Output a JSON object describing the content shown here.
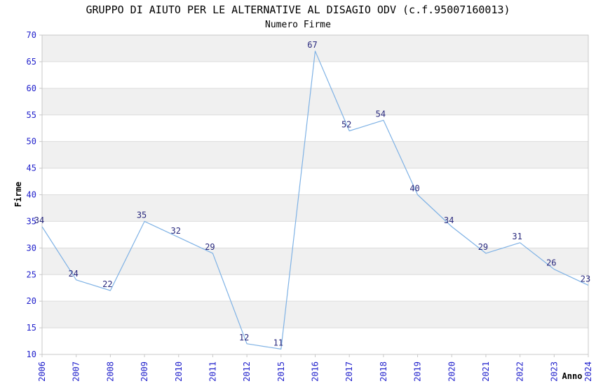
{
  "chart_data": {
    "type": "line",
    "title": "GRUPPO DI AIUTO PER LE ALTERNATIVE AL DISAGIO ODV (c.f.95007160013)",
    "subtitle": "Numero Firme",
    "xlabel": "Anno",
    "ylabel": "Firme",
    "categories": [
      "2006",
      "2007",
      "2008",
      "2009",
      "2010",
      "2011",
      "2012",
      "2015",
      "2016",
      "2017",
      "2018",
      "2019",
      "2020",
      "2021",
      "2022",
      "2023",
      "2024"
    ],
    "values": [
      34,
      24,
      22,
      35,
      32,
      29,
      12,
      11,
      67,
      52,
      54,
      40,
      34,
      29,
      31,
      26,
      23
    ],
    "ylim": [
      10,
      70
    ],
    "ytick_step": 5,
    "yticks": [
      10,
      15,
      20,
      25,
      30,
      35,
      40,
      45,
      50,
      55,
      60,
      65,
      70
    ],
    "xtick_rotation_deg": 90,
    "grid": "horizontal gridlines with alternating shaded bands",
    "legend_position": "none",
    "data_labels_shown": true,
    "colors": {
      "line": "#7fb2e5",
      "tick_label": "#2222cc",
      "point_label": "#28287d",
      "band_fill": "#f0f0f0",
      "gridline": "#dcdcdc",
      "plot_border": "#c8c8c8",
      "title_text": "#000000",
      "background": "#ffffff"
    }
  }
}
